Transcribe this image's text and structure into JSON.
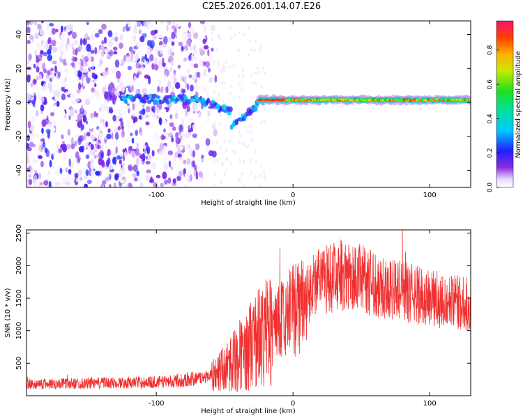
{
  "title": "C2E5.2026.001.14.07.E26",
  "chart_data": [
    {
      "type": "heatmap",
      "title": "",
      "xlabel": "Height of straight line (km)",
      "ylabel": "Frequency (Hz)",
      "xlim": [
        -195,
        130
      ],
      "ylim": [
        -50,
        48
      ],
      "x_ticks": [
        "-100",
        "0",
        "100"
      ],
      "y_ticks": [
        "-40",
        "-20",
        "0",
        "20",
        "40"
      ],
      "colorbar": {
        "label": "Normalized spectral amplitude",
        "range": [
          0.0,
          0.97
        ],
        "ticks": [
          "0.0",
          "0.2",
          "0.4",
          "0.6",
          "0.8"
        ]
      },
      "features": [
        {
          "name": "scattered-noise",
          "x_range": [
            -195,
            -60
          ],
          "y_range": [
            -50,
            48
          ],
          "amplitude": [
            0.0,
            0.25
          ]
        },
        {
          "name": "emerging-line",
          "x_range": [
            -125,
            -25
          ],
          "center_freq": [
            2,
            -14
          ],
          "amplitude": [
            0.1,
            0.35
          ]
        },
        {
          "name": "carrier-line",
          "x_range": [
            -25,
            130
          ],
          "center_freq": 1.5,
          "amplitude": [
            0.4,
            0.97
          ]
        }
      ]
    },
    {
      "type": "line",
      "title": "",
      "xlabel": "Height of straight line (km)",
      "ylabel": "SNR (10 * v/v)",
      "xlim": [
        -195,
        130
      ],
      "ylim": [
        0,
        2550
      ],
      "x_ticks": [
        "-100",
        "0",
        "100"
      ],
      "y_ticks": [
        "500",
        "1000",
        "1500",
        "2000",
        "2500"
      ],
      "series": [
        {
          "name": "SNR",
          "color": "#f03030",
          "envelope": {
            "x": [
              -195,
              -150,
              -100,
              -70,
              -55,
              -45,
              -35,
              -25,
              -15,
              -5,
              5,
              15,
              25,
              35,
              50,
              70,
              90,
              110,
              130
            ],
            "y": [
              180,
              190,
              210,
              260,
              350,
              500,
              700,
              900,
              1050,
              1200,
              1400,
              1700,
              1800,
              1850,
              1800,
              1650,
              1550,
              1450,
              1400
            ]
          }
        }
      ]
    }
  ]
}
